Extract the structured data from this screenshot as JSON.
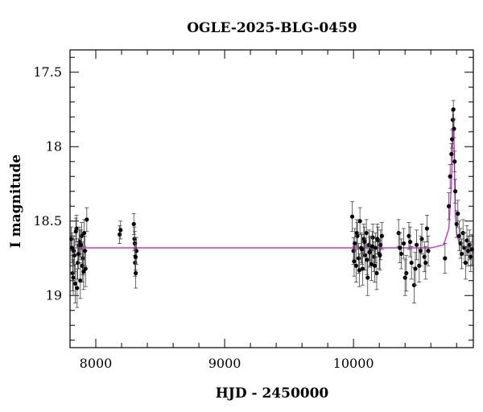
{
  "chart_data": {
    "type": "scatter",
    "title": "OGLE-2025-BLG-0459",
    "xlabel": "HJD - 2450000",
    "ylabel": "I magnitude",
    "xlim": [
      7800,
      10930
    ],
    "ylim": [
      19.35,
      17.35
    ],
    "y_inverted": true,
    "xticks": [
      8000,
      9000,
      10000
    ],
    "xtick_labels": [
      "8000",
      "9000",
      "10000"
    ],
    "yticks": [
      17.5,
      18,
      18.5,
      19
    ],
    "ytick_labels": [
      "17.5",
      "18",
      "18.5",
      "19"
    ],
    "grid": false,
    "colors": {
      "points": "#000000",
      "model": "#cc33cc"
    },
    "series": [
      {
        "kind": "observations",
        "x": [
          7810,
          7820,
          7830,
          7840,
          7850,
          7860,
          7870,
          7880,
          7890,
          7900,
          7910,
          7920,
          7930,
          7815,
          7835,
          7855,
          7875,
          7895,
          7915,
          7825,
          7845,
          7865,
          7885,
          7905,
          8185,
          8192,
          8295,
          8300,
          8305,
          8310,
          8315,
          8302,
          8308,
          9990,
          10000,
          10010,
          10020,
          10030,
          10040,
          10050,
          10060,
          10070,
          10080,
          10090,
          10100,
          10110,
          10120,
          10130,
          10140,
          10150,
          10160,
          10170,
          10180,
          10190,
          10200,
          10210,
          10220,
          10005,
          10025,
          10045,
          10065,
          10085,
          10105,
          10125,
          10145,
          10165,
          10185,
          10205,
          10350,
          10370,
          10390,
          10410,
          10430,
          10450,
          10470,
          10490,
          10510,
          10530,
          10550,
          10570,
          10580,
          10360,
          10400,
          10440,
          10480,
          10520,
          10560,
          10710,
          10740,
          10750,
          10760,
          10765,
          10770,
          10775,
          10780,
          10785,
          10790,
          10800,
          10810,
          10820,
          10830,
          10840,
          10850,
          10860,
          10870,
          10880,
          10890,
          10900,
          10910,
          10920
        ],
        "y": [
          18.62,
          18.85,
          18.7,
          18.92,
          18.55,
          18.78,
          18.66,
          18.9,
          18.6,
          18.75,
          18.58,
          18.82,
          18.49,
          18.68,
          18.73,
          18.95,
          18.64,
          18.8,
          18.7,
          18.88,
          18.57,
          18.72,
          18.66,
          18.84,
          18.59,
          18.56,
          18.52,
          18.62,
          18.78,
          18.85,
          18.7,
          18.65,
          18.74,
          18.47,
          18.7,
          18.65,
          18.8,
          18.6,
          18.75,
          18.5,
          18.68,
          18.82,
          18.62,
          18.73,
          18.58,
          18.88,
          18.66,
          18.7,
          18.79,
          18.61,
          18.74,
          18.68,
          18.85,
          18.63,
          18.72,
          18.66,
          18.6,
          18.77,
          18.58,
          18.83,
          18.69,
          18.64,
          18.76,
          18.71,
          18.67,
          18.8,
          18.62,
          18.73,
          18.58,
          18.72,
          18.65,
          18.85,
          18.6,
          18.78,
          18.93,
          18.66,
          18.8,
          18.62,
          18.74,
          18.55,
          18.7,
          18.68,
          18.88,
          18.64,
          18.82,
          18.7,
          18.78,
          18.75,
          18.4,
          18.2,
          18.05,
          17.95,
          17.82,
          17.75,
          17.88,
          18.1,
          18.3,
          18.52,
          18.45,
          18.6,
          18.65,
          18.72,
          18.58,
          18.68,
          18.78,
          18.63,
          18.7,
          18.66,
          18.74,
          18.69
        ],
        "y_errors": [
          0.08,
          0.12,
          0.1,
          0.13,
          0.09,
          0.11,
          0.1,
          0.12,
          0.09,
          0.11,
          0.09,
          0.12,
          0.08,
          0.1,
          0.11,
          0.13,
          0.1,
          0.11,
          0.1,
          0.12,
          0.09,
          0.1,
          0.1,
          0.12,
          0.06,
          0.06,
          0.07,
          0.08,
          0.09,
          0.1,
          0.09,
          0.08,
          0.09,
          0.1,
          0.09,
          0.1,
          0.11,
          0.09,
          0.1,
          0.09,
          0.1,
          0.11,
          0.1,
          0.1,
          0.09,
          0.12,
          0.1,
          0.1,
          0.11,
          0.09,
          0.1,
          0.1,
          0.11,
          0.09,
          0.1,
          0.1,
          0.09,
          0.1,
          0.09,
          0.11,
          0.1,
          0.1,
          0.1,
          0.1,
          0.1,
          0.11,
          0.1,
          0.1,
          0.09,
          0.1,
          0.1,
          0.12,
          0.09,
          0.11,
          0.12,
          0.1,
          0.11,
          0.1,
          0.1,
          0.09,
          0.1,
          0.1,
          0.12,
          0.1,
          0.11,
          0.1,
          0.11,
          0.1,
          0.09,
          0.08,
          0.07,
          0.06,
          0.06,
          0.06,
          0.06,
          0.07,
          0.08,
          0.09,
          0.09,
          0.1,
          0.1,
          0.1,
          0.09,
          0.1,
          0.11,
          0.1,
          0.1,
          0.1,
          0.1,
          0.1
        ]
      },
      {
        "kind": "model",
        "x": [
          7800,
          10000,
          10600,
          10700,
          10740,
          10760,
          10770,
          10775,
          10780,
          10785,
          10790,
          10800,
          10820,
          10850,
          10900,
          10930
        ],
        "y": [
          18.68,
          18.68,
          18.68,
          18.66,
          18.55,
          18.25,
          17.95,
          17.78,
          17.95,
          18.25,
          18.45,
          18.58,
          18.65,
          18.67,
          18.68,
          18.68
        ]
      }
    ]
  }
}
